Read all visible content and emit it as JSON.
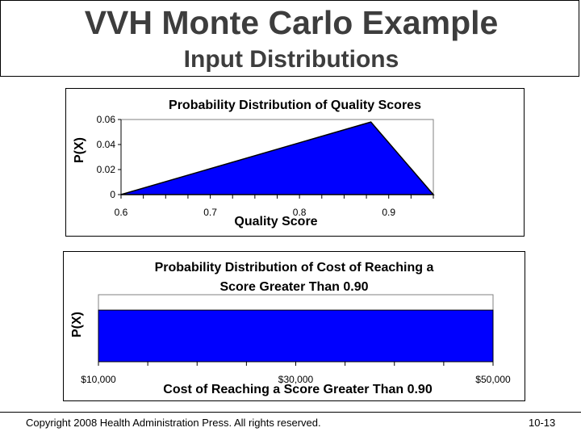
{
  "header": {
    "title": "VVH Monte Carlo Example",
    "subtitle": "Input Distributions"
  },
  "footer": {
    "copyright": "Copyright 2008 Health Administration Press. All rights reserved.",
    "page": "10-13"
  },
  "colors": {
    "fill": "#0000ff",
    "outline": "#000000"
  },
  "chart_data": [
    {
      "type": "area",
      "title": "Probability Distribution of Quality Scores",
      "xlabel": "Quality Score",
      "ylabel": "P(X)",
      "x": [
        0.6,
        0.88,
        0.95
      ],
      "y": [
        0,
        0.058,
        0
      ],
      "xlim": [
        0.6,
        0.95
      ],
      "ylim": [
        0,
        0.06
      ],
      "xticks": [
        0.6,
        0.7,
        0.8,
        0.9
      ],
      "xtick_labels": [
        "0.6",
        "0.7",
        "0.8",
        "0.9"
      ],
      "yticks": [
        0,
        0.02,
        0.04,
        0.06
      ],
      "ytick_labels": [
        "0",
        "0.02",
        "0.04",
        "0.06"
      ],
      "grid": false
    },
    {
      "type": "area",
      "title_lines": [
        "Probability Distribution of Cost of Reaching a",
        "Score Greater Than 0.90"
      ],
      "xlabel": "Cost of Reaching a Score Greater Than 0.90",
      "ylabel": "P(X)",
      "x": [
        10000,
        50000
      ],
      "y_fraction_of_axis": 0.77,
      "xlim": [
        10000,
        50000
      ],
      "xticks": [
        10000,
        30000,
        50000
      ],
      "xtick_labels": [
        "$10,000",
        "$30,000",
        "$50,000"
      ],
      "minor_tick_count": 8,
      "grid": false
    }
  ]
}
